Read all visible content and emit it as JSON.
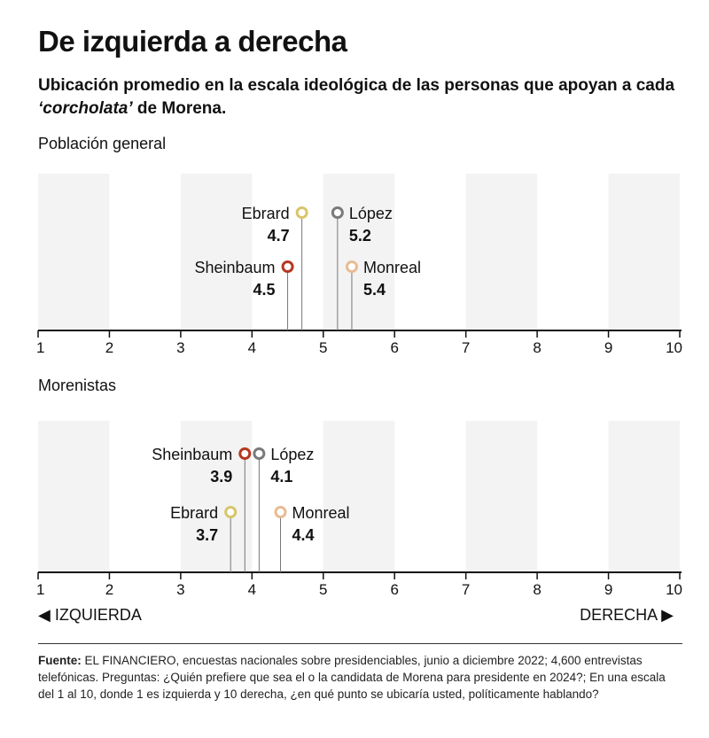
{
  "title": "De izquierda a derecha",
  "subtitle_pre": "Ubicación promedio en la escala ideológica de las personas que apoyan a cada ",
  "subtitle_em": "‘corcholata’",
  "subtitle_post": " de Morena.",
  "axis_left_label": "◀ IZQUIERDA",
  "axis_right_label": "DERECHA ▶",
  "source_label": "Fuente:",
  "source_text": " EL FINANCIERO, encuestas nacionales sobre presidenciables, junio a diciembre 2022; 4,600 entrevistas telefónicas. Preguntas: ¿Quién prefiere que sea el o la candidata de Morena para presidente en 2024?; En una escala del 1 al 10, donde 1 es izquierda y 10 derecha, ¿en qué punto se ubicaría usted, políticamente hablando?",
  "colors": {
    "Sheinbaum": "#b5371f",
    "Ebrard": "#d8c56a",
    "López": "#7a7a7a",
    "Monreal": "#e8bb93",
    "band": "#f3f3f3",
    "axis": "#111111"
  },
  "chart_data": [
    {
      "type": "scatter",
      "title": "Población general",
      "xlabel": "",
      "ylabel": "",
      "xlim": [
        1,
        10
      ],
      "ticks": [
        1,
        2,
        3,
        4,
        5,
        6,
        7,
        8,
        9,
        10
      ],
      "points": [
        {
          "name": "Ebrard",
          "value": 4.7,
          "label": "4.7",
          "row": "upper",
          "label_side": "left"
        },
        {
          "name": "López",
          "value": 5.2,
          "label": "5.2",
          "row": "upper",
          "label_side": "right"
        },
        {
          "name": "Sheinbaum",
          "value": 4.5,
          "label": "4.5",
          "row": "lower",
          "label_side": "left"
        },
        {
          "name": "Monreal",
          "value": 5.4,
          "label": "5.4",
          "row": "lower",
          "label_side": "right"
        }
      ]
    },
    {
      "type": "scatter",
      "title": "Morenistas",
      "xlabel": "",
      "ylabel": "",
      "xlim": [
        1,
        10
      ],
      "ticks": [
        1,
        2,
        3,
        4,
        5,
        6,
        7,
        8,
        9,
        10
      ],
      "points": [
        {
          "name": "Sheinbaum",
          "value": 3.9,
          "label": "3.9",
          "row": "upper",
          "label_side": "left"
        },
        {
          "name": "López",
          "value": 4.1,
          "label": "4.1",
          "row": "upper",
          "label_side": "right"
        },
        {
          "name": "Ebrard",
          "value": 3.7,
          "label": "3.7",
          "row": "lower",
          "label_side": "left"
        },
        {
          "name": "Monreal",
          "value": 4.4,
          "label": "4.4",
          "row": "lower",
          "label_side": "right"
        }
      ]
    }
  ]
}
